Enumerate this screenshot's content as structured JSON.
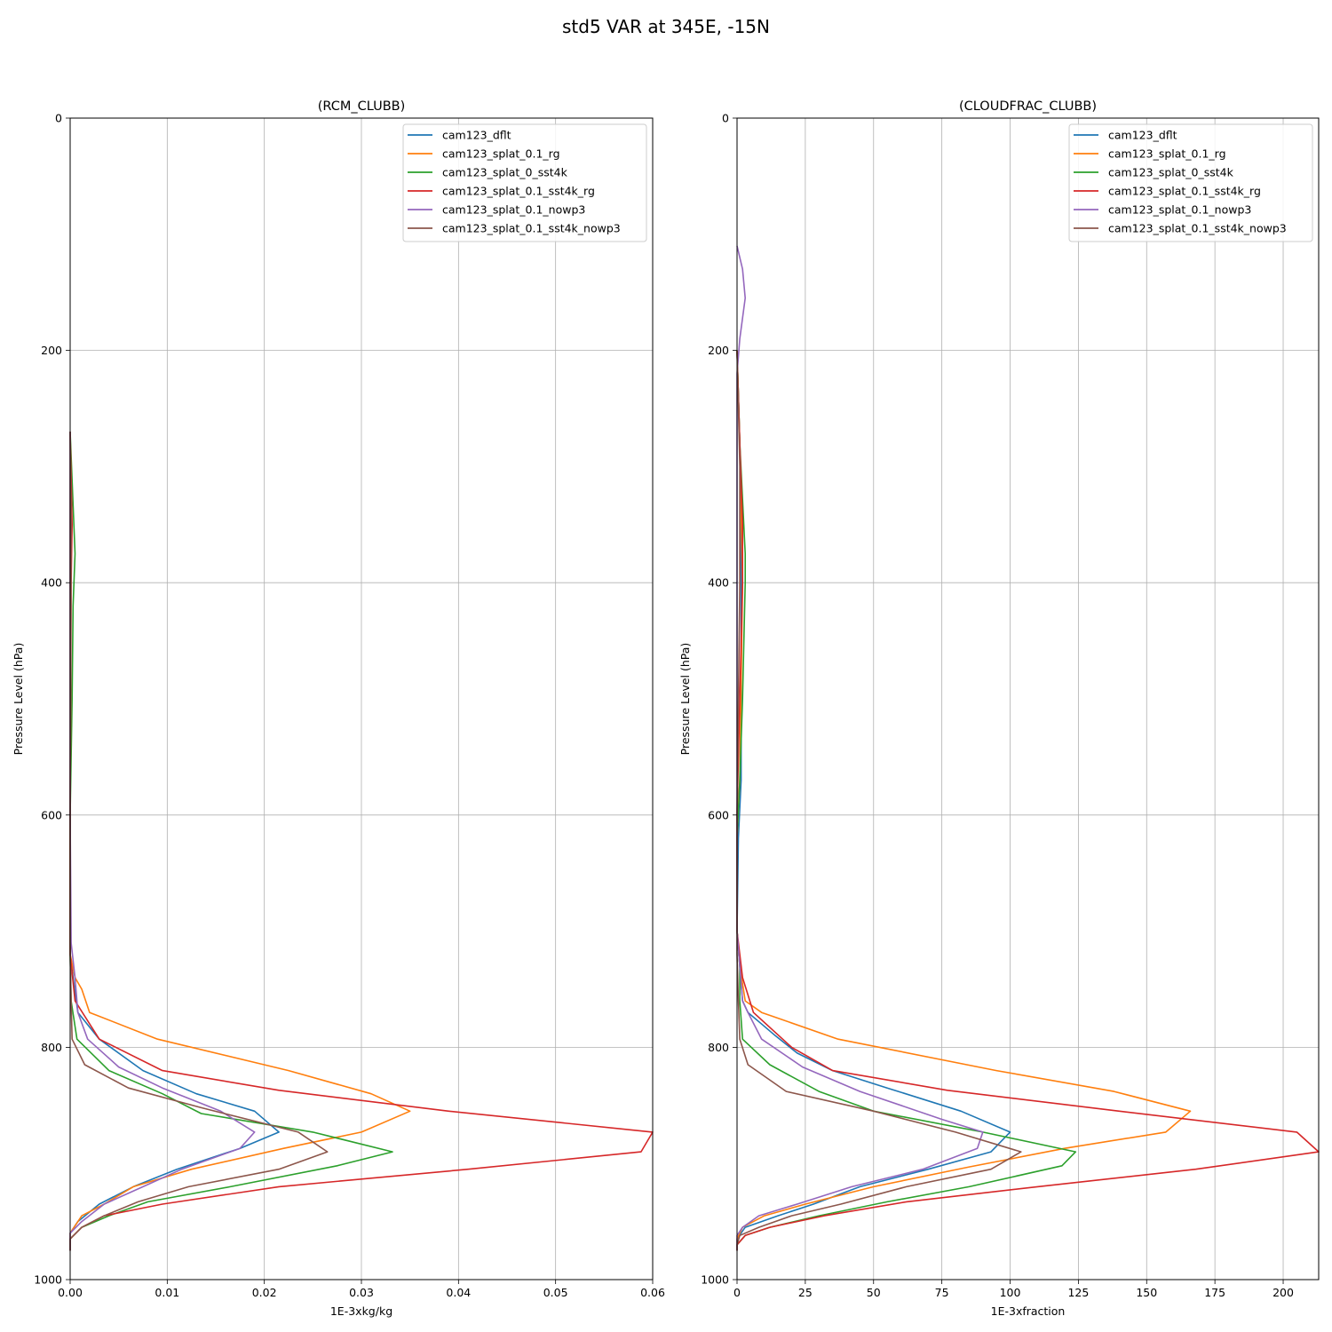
{
  "suptitle": "std5 VAR at 345E, -15N",
  "colors": {
    "cam123_dflt": "#1f77b4",
    "cam123_splat_0.1_rg": "#ff7f0e",
    "cam123_splat_0_sst4k": "#2ca02c",
    "cam123_splat_0.1_sst4k_rg": "#d62728",
    "cam123_splat_0.1_nowp3": "#9467bd",
    "cam123_splat_0.1_sst4k_nowp3": "#8c564b"
  },
  "chart_data": [
    {
      "type": "line",
      "title": "(RCM_CLUBB)",
      "xlabel": "1E-3xkg/kg",
      "ylabel": "Pressure Level (hPa)",
      "xlim": [
        0,
        0.06
      ],
      "ylim": [
        1000,
        0
      ],
      "y_inverted": true,
      "grid": true,
      "legend": "top-right",
      "xticks": [
        "0.00",
        "0.01",
        "0.02",
        "0.03",
        "0.04",
        "0.05",
        "0.06"
      ],
      "xtick_values": [
        0,
        0.01,
        0.02,
        0.03,
        0.04,
        0.05,
        0.06
      ],
      "yticks": [
        "0",
        "200",
        "400",
        "600",
        "800",
        "1000"
      ],
      "ytick_values": [
        0,
        200,
        400,
        600,
        800,
        1000
      ],
      "series": [
        {
          "name": "cam123_dflt",
          "points": [
            [
              0,
              270
            ],
            [
              0,
              600
            ],
            [
              0,
              720
            ],
            [
              0.0003,
              740
            ],
            [
              0.0008,
              770
            ],
            [
              0.003,
              793
            ],
            [
              0.0075,
              820
            ],
            [
              0.013,
              840
            ],
            [
              0.019,
              855
            ],
            [
              0.0215,
              873
            ],
            [
              0.0175,
              887
            ],
            [
              0.011,
              905
            ],
            [
              0.0065,
              920
            ],
            [
              0.003,
              935
            ],
            [
              0.0008,
              950
            ],
            [
              0,
              960
            ],
            [
              0,
              975
            ]
          ]
        },
        {
          "name": "cam123_splat_0.1_rg",
          "points": [
            [
              0,
              270
            ],
            [
              0,
              600
            ],
            [
              0,
              720
            ],
            [
              0.0005,
              740
            ],
            [
              0.0012,
              750
            ],
            [
              0.002,
              770
            ],
            [
              0.009,
              793
            ],
            [
              0.0225,
              820
            ],
            [
              0.031,
              840
            ],
            [
              0.035,
              855
            ],
            [
              0.03,
              873
            ],
            [
              0.022,
              887
            ],
            [
              0.0125,
              905
            ],
            [
              0.0065,
              920
            ],
            [
              0.0035,
              935
            ],
            [
              0.0012,
              945
            ],
            [
              0,
              960
            ],
            [
              0,
              975
            ]
          ]
        },
        {
          "name": "cam123_splat_0_sst4k",
          "points": [
            [
              0,
              270
            ],
            [
              0.0005,
              375
            ],
            [
              0.0003,
              420
            ],
            [
              0.0002,
              500
            ],
            [
              0,
              600
            ],
            [
              0,
              720
            ],
            [
              0.0001,
              760
            ],
            [
              0.0007,
              793
            ],
            [
              0.004,
              820
            ],
            [
              0.0095,
              840
            ],
            [
              0.0135,
              857
            ],
            [
              0.025,
              873
            ],
            [
              0.0332,
              890
            ],
            [
              0.0275,
              902
            ],
            [
              0.0165,
              920
            ],
            [
              0.008,
              933
            ],
            [
              0.004,
              945
            ],
            [
              0.0012,
              955
            ],
            [
              0,
              965
            ],
            [
              0,
              975
            ]
          ]
        },
        {
          "name": "cam123_splat_0.1_sst4k_rg",
          "points": [
            [
              0,
              270
            ],
            [
              0.0002,
              350
            ],
            [
              0.0001,
              400
            ],
            [
              0,
              600
            ],
            [
              0,
              720
            ],
            [
              0.0005,
              760
            ],
            [
              0.003,
              793
            ],
            [
              0.0095,
              820
            ],
            [
              0.0215,
              837
            ],
            [
              0.039,
              855
            ],
            [
              0.06,
              873
            ],
            [
              0.0588,
              890
            ],
            [
              0.041,
              905
            ],
            [
              0.0215,
              920
            ],
            [
              0.0095,
              935
            ],
            [
              0.0035,
              945
            ],
            [
              0.0012,
              955
            ],
            [
              0,
              965
            ],
            [
              0,
              975
            ]
          ]
        },
        {
          "name": "cam123_splat_0.1_nowp3",
          "points": [
            [
              0,
              270
            ],
            [
              0,
              600
            ],
            [
              0.0001,
              710
            ],
            [
              0.0005,
              740
            ],
            [
              0.0008,
              770
            ],
            [
              0.0018,
              793
            ],
            [
              0.005,
              817
            ],
            [
              0.0095,
              835
            ],
            [
              0.0155,
              855
            ],
            [
              0.019,
              873
            ],
            [
              0.0175,
              887
            ],
            [
              0.0115,
              905
            ],
            [
              0.0075,
              920
            ],
            [
              0.0035,
              935
            ],
            [
              0.0012,
              950
            ],
            [
              0,
              960
            ],
            [
              0,
              975
            ]
          ]
        },
        {
          "name": "cam123_splat_0.1_sst4k_nowp3",
          "points": [
            [
              0,
              270
            ],
            [
              0.0001,
              350
            ],
            [
              0,
              600
            ],
            [
              0,
              720
            ],
            [
              0.0001,
              760
            ],
            [
              0.0002,
              793
            ],
            [
              0.0015,
              815
            ],
            [
              0.006,
              835
            ],
            [
              0.0135,
              852
            ],
            [
              0.0235,
              873
            ],
            [
              0.0265,
              890
            ],
            [
              0.0215,
              905
            ],
            [
              0.0122,
              920
            ],
            [
              0.007,
              933
            ],
            [
              0.0035,
              945
            ],
            [
              0.0012,
              955
            ],
            [
              0,
              965
            ],
            [
              0,
              975
            ]
          ]
        }
      ]
    },
    {
      "type": "line",
      "title": "(CLOUDFRAC_CLUBB)",
      "xlabel": "1E-3xfraction",
      "ylabel": "Pressure Level (hPa)",
      "xlim": [
        0,
        213
      ],
      "ylim": [
        1000,
        0
      ],
      "y_inverted": true,
      "grid": true,
      "legend": "top-right",
      "xticks": [
        "0",
        "25",
        "50",
        "75",
        "100",
        "125",
        "150",
        "175",
        "200"
      ],
      "xtick_values": [
        0,
        25,
        50,
        75,
        100,
        125,
        150,
        175,
        200
      ],
      "yticks": [
        "0",
        "200",
        "400",
        "600",
        "800",
        "1000"
      ],
      "ytick_values": [
        0,
        200,
        400,
        600,
        800,
        1000
      ],
      "series": [
        {
          "name": "cam123_dflt",
          "points": [
            [
              0,
              200
            ],
            [
              1,
              280
            ],
            [
              1.5,
              400
            ],
            [
              1.5,
              570
            ],
            [
              0.5,
              620
            ],
            [
              0,
              700
            ],
            [
              1,
              730
            ],
            [
              2,
              760
            ],
            [
              4,
              770
            ],
            [
              9,
              780
            ],
            [
              14,
              790
            ],
            [
              22,
              805
            ],
            [
              35,
              820
            ],
            [
              55,
              835
            ],
            [
              82,
              855
            ],
            [
              100,
              873
            ],
            [
              93,
              890
            ],
            [
              70,
              905
            ],
            [
              45,
              920
            ],
            [
              28,
              935
            ],
            [
              15,
              945
            ],
            [
              3,
              955
            ],
            [
              0,
              965
            ],
            [
              0,
              975
            ]
          ]
        },
        {
          "name": "cam123_splat_0.1_rg",
          "points": [
            [
              0,
              200
            ],
            [
              1,
              280
            ],
            [
              2,
              400
            ],
            [
              1,
              570
            ],
            [
              0,
              620
            ],
            [
              0,
              700
            ],
            [
              1,
              730
            ],
            [
              3,
              760
            ],
            [
              9,
              770
            ],
            [
              37,
              793
            ],
            [
              95,
              820
            ],
            [
              138,
              838
            ],
            [
              166,
              855
            ],
            [
              157,
              873
            ],
            [
              120,
              887
            ],
            [
              85,
              903
            ],
            [
              50,
              920
            ],
            [
              25,
              935
            ],
            [
              10,
              945
            ],
            [
              2,
              955
            ],
            [
              0,
              965
            ],
            [
              0,
              975
            ]
          ]
        },
        {
          "name": "cam123_splat_0_sst4k",
          "points": [
            [
              0,
              200
            ],
            [
              1,
              280
            ],
            [
              3,
              375
            ],
            [
              3,
              400
            ],
            [
              2,
              500
            ],
            [
              1,
              570
            ],
            [
              0,
              620
            ],
            [
              0,
              700
            ],
            [
              1,
              730
            ],
            [
              1,
              760
            ],
            [
              2,
              793
            ],
            [
              12,
              815
            ],
            [
              30,
              838
            ],
            [
              50,
              855
            ],
            [
              90,
              873
            ],
            [
              124,
              890
            ],
            [
              119,
              902
            ],
            [
              85,
              920
            ],
            [
              55,
              933
            ],
            [
              30,
              945
            ],
            [
              12,
              955
            ],
            [
              3,
              962
            ],
            [
              0,
              970
            ],
            [
              0,
              975
            ]
          ]
        },
        {
          "name": "cam123_splat_0.1_sst4k_rg",
          "points": [
            [
              0,
              200
            ],
            [
              1,
              280
            ],
            [
              2,
              350
            ],
            [
              2,
              400
            ],
            [
              1,
              500
            ],
            [
              0,
              600
            ],
            [
              0,
              700
            ],
            [
              2,
              740
            ],
            [
              6,
              770
            ],
            [
              20,
              800
            ],
            [
              35,
              820
            ],
            [
              77,
              837
            ],
            [
              140,
              855
            ],
            [
              205,
              873
            ],
            [
              213,
              890
            ],
            [
              168,
              905
            ],
            [
              110,
              920
            ],
            [
              62,
              933
            ],
            [
              32,
              945
            ],
            [
              12,
              955
            ],
            [
              3,
              962
            ],
            [
              0,
              970
            ],
            [
              0,
              975
            ]
          ]
        },
        {
          "name": "cam123_splat_0.1_nowp3",
          "points": [
            [
              0,
              110
            ],
            [
              2,
              130
            ],
            [
              3,
              155
            ],
            [
              1,
              190
            ],
            [
              0,
              220
            ],
            [
              0,
              700
            ],
            [
              1,
              730
            ],
            [
              2,
              760
            ],
            [
              4,
              770
            ],
            [
              9,
              793
            ],
            [
              24,
              817
            ],
            [
              45,
              838
            ],
            [
              75,
              862
            ],
            [
              90,
              873
            ],
            [
              88,
              887
            ],
            [
              68,
              905
            ],
            [
              42,
              920
            ],
            [
              22,
              935
            ],
            [
              8,
              945
            ],
            [
              2,
              955
            ],
            [
              0,
              962
            ],
            [
              0,
              975
            ]
          ]
        },
        {
          "name": "cam123_splat_0.1_sst4k_nowp3",
          "points": [
            [
              0,
              200
            ],
            [
              1,
              300
            ],
            [
              1,
              400
            ],
            [
              0,
              600
            ],
            [
              0,
              720
            ],
            [
              0.5,
              760
            ],
            [
              1,
              793
            ],
            [
              4,
              815
            ],
            [
              18,
              838
            ],
            [
              50,
              855
            ],
            [
              80,
              873
            ],
            [
              104,
              890
            ],
            [
              93,
              905
            ],
            [
              62,
              920
            ],
            [
              38,
              935
            ],
            [
              20,
              945
            ],
            [
              8,
              955
            ],
            [
              1,
              962
            ],
            [
              0,
              970
            ],
            [
              0,
              975
            ]
          ]
        }
      ]
    }
  ]
}
